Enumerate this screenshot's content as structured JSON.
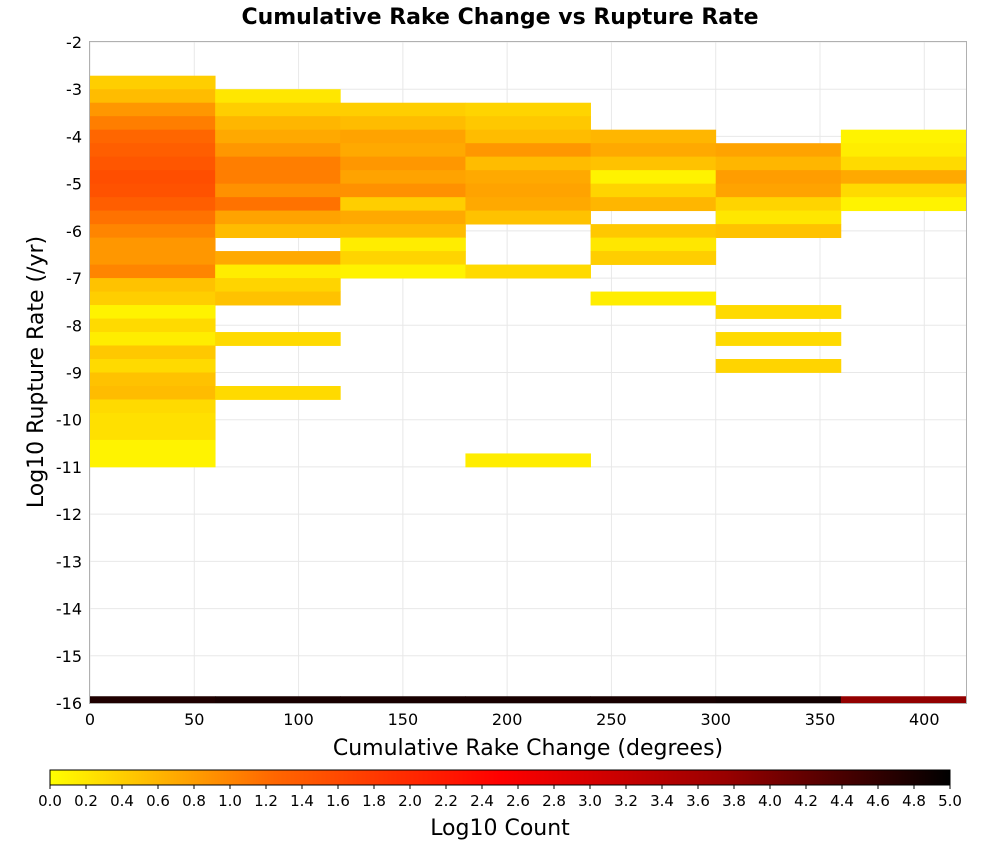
{
  "chart_data": {
    "type": "heatmap",
    "title": "Cumulative Rake Change vs Rupture Rate",
    "xlabel": "Cumulative Rake Change (degrees)",
    "ylabel": "Log10 Rupture Rate (/yr)",
    "xlim": [
      0,
      420
    ],
    "ylim": [
      -16,
      -2
    ],
    "xticks": [
      "0",
      "50",
      "100",
      "150",
      "200",
      "250",
      "300",
      "350",
      "400"
    ],
    "yticks": [
      "-2",
      "-3",
      "-4",
      "-5",
      "-6",
      "-7",
      "-8",
      "-9",
      "-10",
      "-11",
      "-12",
      "-13",
      "-14",
      "-15",
      "-16"
    ],
    "x_bin_width": 60,
    "y_bin_height": 0.286,
    "grid": true,
    "colorbar": {
      "label": "Log10 Count",
      "range": [
        0.0,
        5.0
      ],
      "ticks": [
        "0.0",
        "0.2",
        "0.4",
        "0.6",
        "0.8",
        "1.0",
        "1.2",
        "1.4",
        "1.6",
        "1.8",
        "2.0",
        "2.2",
        "2.4",
        "2.6",
        "2.8",
        "3.0",
        "3.2",
        "3.4",
        "3.6",
        "3.8",
        "4.0",
        "4.2",
        "4.4",
        "4.6",
        "4.8",
        "5.0"
      ],
      "colors": [
        "#ffff00",
        "#ff6600",
        "#ff0000",
        "#990000",
        "#000000"
      ]
    },
    "columns": [
      {
        "x_start": 0,
        "cells": [
          {
            "y": -2.857,
            "v": 0.4
          },
          {
            "y": -3.143,
            "v": 0.55
          },
          {
            "y": -3.429,
            "v": 0.85
          },
          {
            "y": -3.714,
            "v": 1.05
          },
          {
            "y": -4.0,
            "v": 1.25
          },
          {
            "y": -4.286,
            "v": 1.35
          },
          {
            "y": -4.571,
            "v": 1.45
          },
          {
            "y": -4.857,
            "v": 1.55
          },
          {
            "y": -5.143,
            "v": 1.5
          },
          {
            "y": -5.429,
            "v": 1.35
          },
          {
            "y": -5.714,
            "v": 1.15
          },
          {
            "y": -6.0,
            "v": 1.0
          },
          {
            "y": -6.286,
            "v": 0.85
          },
          {
            "y": -6.571,
            "v": 0.85
          },
          {
            "y": -6.857,
            "v": 1.0
          },
          {
            "y": -7.143,
            "v": 0.5
          },
          {
            "y": -7.429,
            "v": 0.4
          },
          {
            "y": -7.714,
            "v": 0.1
          },
          {
            "y": -8.0,
            "v": 0.3
          },
          {
            "y": -8.286,
            "v": 0.15
          },
          {
            "y": -8.571,
            "v": 0.45
          },
          {
            "y": -8.857,
            "v": 0.3
          },
          {
            "y": -9.143,
            "v": 0.5
          },
          {
            "y": -9.429,
            "v": 0.55
          },
          {
            "y": -9.714,
            "v": 0.3
          },
          {
            "y": -10.0,
            "v": 0.25
          },
          {
            "y": -10.286,
            "v": 0.25
          },
          {
            "y": -10.571,
            "v": 0.1
          },
          {
            "y": -10.857,
            "v": 0.1
          },
          {
            "y": -16.0,
            "v": 4.75
          }
        ]
      },
      {
        "x_start": 60,
        "cells": [
          {
            "y": -3.143,
            "v": 0.2
          },
          {
            "y": -3.429,
            "v": 0.4
          },
          {
            "y": -3.714,
            "v": 0.6
          },
          {
            "y": -4.0,
            "v": 0.7
          },
          {
            "y": -4.286,
            "v": 0.85
          },
          {
            "y": -4.571,
            "v": 1.05
          },
          {
            "y": -4.857,
            "v": 1.05
          },
          {
            "y": -5.143,
            "v": 0.9
          },
          {
            "y": -5.429,
            "v": 1.15
          },
          {
            "y": -5.714,
            "v": 0.75
          },
          {
            "y": -6.0,
            "v": 0.55
          },
          {
            "y": -6.571,
            "v": 0.7
          },
          {
            "y": -6.857,
            "v": 0.15
          },
          {
            "y": -7.143,
            "v": 0.35
          },
          {
            "y": -7.429,
            "v": 0.5
          },
          {
            "y": -8.286,
            "v": 0.3
          },
          {
            "y": -9.429,
            "v": 0.3
          },
          {
            "y": -16.0,
            "v": 4.8
          }
        ]
      },
      {
        "x_start": 120,
        "cells": [
          {
            "y": -3.429,
            "v": 0.4
          },
          {
            "y": -3.714,
            "v": 0.55
          },
          {
            "y": -4.0,
            "v": 0.75
          },
          {
            "y": -4.286,
            "v": 0.7
          },
          {
            "y": -4.571,
            "v": 0.85
          },
          {
            "y": -4.857,
            "v": 0.75
          },
          {
            "y": -5.143,
            "v": 0.9
          },
          {
            "y": -5.429,
            "v": 0.4
          },
          {
            "y": -5.714,
            "v": 0.7
          },
          {
            "y": -6.0,
            "v": 0.55
          },
          {
            "y": -6.286,
            "v": 0.15
          },
          {
            "y": -6.571,
            "v": 0.35
          },
          {
            "y": -6.857,
            "v": 0.1
          },
          {
            "y": -16.0,
            "v": 4.8
          }
        ]
      },
      {
        "x_start": 180,
        "cells": [
          {
            "y": -3.429,
            "v": 0.35
          },
          {
            "y": -3.714,
            "v": 0.45
          },
          {
            "y": -4.0,
            "v": 0.55
          },
          {
            "y": -4.286,
            "v": 0.85
          },
          {
            "y": -4.571,
            "v": 0.55
          },
          {
            "y": -4.857,
            "v": 0.7
          },
          {
            "y": -5.143,
            "v": 0.75
          },
          {
            "y": -5.429,
            "v": 0.7
          },
          {
            "y": -5.714,
            "v": 0.5
          },
          {
            "y": -6.857,
            "v": 0.3
          },
          {
            "y": -10.857,
            "v": 0.15
          },
          {
            "y": -16.0,
            "v": 4.8
          }
        ]
      },
      {
        "x_start": 240,
        "cells": [
          {
            "y": -4.0,
            "v": 0.6
          },
          {
            "y": -4.286,
            "v": 0.7
          },
          {
            "y": -4.571,
            "v": 0.5
          },
          {
            "y": -4.857,
            "v": 0.1
          },
          {
            "y": -5.143,
            "v": 0.35
          },
          {
            "y": -5.429,
            "v": 0.6
          },
          {
            "y": -6.0,
            "v": 0.45
          },
          {
            "y": -6.286,
            "v": 0.2
          },
          {
            "y": -6.571,
            "v": 0.4
          },
          {
            "y": -7.429,
            "v": 0.15
          },
          {
            "y": -16.0,
            "v": 4.8
          }
        ]
      },
      {
        "x_start": 300,
        "cells": [
          {
            "y": -4.286,
            "v": 0.75
          },
          {
            "y": -4.571,
            "v": 0.6
          },
          {
            "y": -4.857,
            "v": 0.8
          },
          {
            "y": -5.143,
            "v": 0.75
          },
          {
            "y": -5.429,
            "v": 0.35
          },
          {
            "y": -5.714,
            "v": 0.2
          },
          {
            "y": -6.0,
            "v": 0.5
          },
          {
            "y": -7.714,
            "v": 0.3
          },
          {
            "y": -8.286,
            "v": 0.3
          },
          {
            "y": -8.857,
            "v": 0.35
          },
          {
            "y": -16.0,
            "v": 4.85
          }
        ]
      },
      {
        "x_start": 360,
        "cells": [
          {
            "y": -4.0,
            "v": 0.1
          },
          {
            "y": -4.286,
            "v": 0.15
          },
          {
            "y": -4.571,
            "v": 0.3
          },
          {
            "y": -4.857,
            "v": 0.7
          },
          {
            "y": -5.143,
            "v": 0.3
          },
          {
            "y": -5.429,
            "v": 0.1
          },
          {
            "y": -16.0,
            "v": 3.8
          }
        ]
      }
    ]
  }
}
